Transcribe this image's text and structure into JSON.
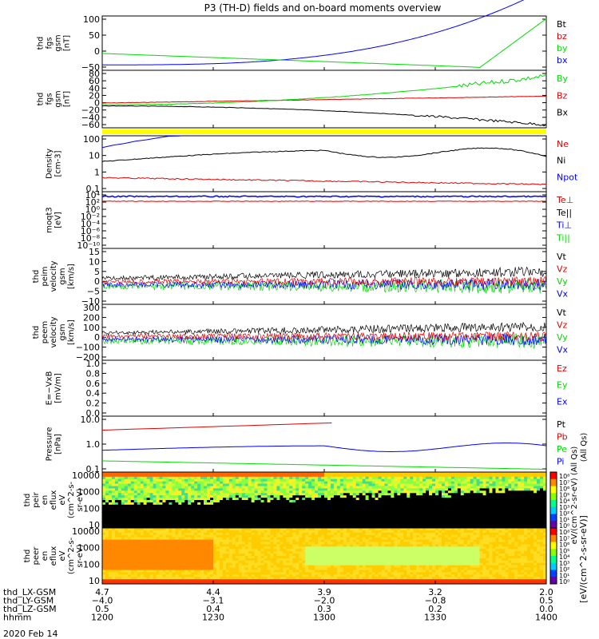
{
  "title": "P3 (TH-D) fields and on-board moments overview",
  "colors": {
    "black": "#000000",
    "red": "#e00000",
    "green": "#00dd00",
    "blue": "#0000ff",
    "yellow": "#ffff00"
  },
  "chart_data": [
    {
      "type": "line",
      "id": "fgs-gsm",
      "ylabel": [
        "thd",
        "fgs",
        "gsm",
        "[nT]"
      ],
      "yticks": [
        "100",
        "50",
        "0",
        "−50"
      ],
      "legend": [
        {
          "label": "Bt",
          "color": "black"
        },
        {
          "label": "bz",
          "color": "red"
        },
        {
          "label": "by",
          "color": "green"
        },
        {
          "label": "bx",
          "color": "blue"
        }
      ]
    },
    {
      "type": "line",
      "id": "fgs-gse",
      "ylabel": [
        "thd",
        "fgs",
        "gsm",
        "[nT]"
      ],
      "yticks": [
        "80",
        "60",
        "40",
        "20",
        "0",
        "−20",
        "−40",
        "−60"
      ],
      "legend": [
        {
          "label": "By",
          "color": "green"
        },
        {
          "label": "Bz",
          "color": "red"
        },
        {
          "label": "Bx",
          "color": "black"
        }
      ]
    },
    {
      "type": "bar",
      "id": "mode-bar",
      "color": "yellow"
    },
    {
      "type": "line",
      "id": "density",
      "log": true,
      "ylabel": [
        "Density",
        "[cm-3]"
      ],
      "yticks": [
        "100",
        "10",
        "1",
        "0.1"
      ],
      "legend": [
        {
          "label": "Ne",
          "color": "red"
        },
        {
          "label": "Ni",
          "color": "black"
        },
        {
          "label": "Npot",
          "color": "blue"
        }
      ]
    },
    {
      "type": "line",
      "id": "temperature",
      "log": true,
      "ylabel": [
        "moqt3",
        "[eV]"
      ],
      "yticks": [
        "10⁴",
        "10²",
        "10⁰",
        "10⁻²",
        "10⁻⁴",
        "10⁻⁶",
        "10⁻⁸",
        "10⁻¹⁰"
      ],
      "legend": [
        {
          "label": "Te⊥",
          "color": "red"
        },
        {
          "label": "Te||",
          "color": "black"
        },
        {
          "label": "Ti⊥",
          "color": "blue"
        },
        {
          "label": "Ti||",
          "color": "green"
        }
      ]
    },
    {
      "type": "line",
      "id": "peim-velocity",
      "ylabel": [
        "thd",
        "peim",
        "velocity",
        "gsm",
        "[km/s]"
      ],
      "yticks": [
        "15",
        "10",
        "5",
        "0",
        "−5",
        "−10"
      ],
      "legend": [
        {
          "label": "Vt",
          "color": "black"
        },
        {
          "label": "Vz",
          "color": "red"
        },
        {
          "label": "Vy",
          "color": "green"
        },
        {
          "label": "Vx",
          "color": "blue"
        }
      ]
    },
    {
      "type": "line",
      "id": "peem-velocity",
      "ylabel": [
        "thd",
        "peem",
        "velocity",
        "gsm",
        "[km/s]"
      ],
      "yticks": [
        "300",
        "200",
        "100",
        "0",
        "−100",
        "−200"
      ],
      "legend": [
        {
          "label": "Vt",
          "color": "black"
        },
        {
          "label": "Vz",
          "color": "red"
        },
        {
          "label": "Vy",
          "color": "green"
        },
        {
          "label": "Vx",
          "color": "blue"
        }
      ]
    },
    {
      "type": "line",
      "id": "efield",
      "ylabel": [
        "E=−VxB",
        "[mV/m]"
      ],
      "yticks": [
        "1.0",
        "0.8",
        "0.6",
        "0.4",
        "0.2",
        "0.0"
      ],
      "legend": [
        {
          "label": "Ez",
          "color": "red"
        },
        {
          "label": "Ey",
          "color": "green"
        },
        {
          "label": "Ex",
          "color": "blue"
        }
      ]
    },
    {
      "type": "line",
      "id": "pressure",
      "log": true,
      "ylabel": [
        "Pressure",
        "[nPa]"
      ],
      "yticks": [
        "10.0",
        "1.0",
        "0.1"
      ],
      "legend": [
        {
          "label": "Pt",
          "color": "black"
        },
        {
          "label": "Pb",
          "color": "red"
        },
        {
          "label": "Pe",
          "color": "green"
        },
        {
          "label": "Pi",
          "color": "blue"
        }
      ],
      "colorbar_label": "(All Qs)"
    },
    {
      "type": "heatmap",
      "id": "peir",
      "log": true,
      "ylabel": [
        "thd",
        "peir",
        "en",
        "eflux",
        "eV",
        "(cm^2-s-",
        "sr-eV)"
      ],
      "yticks": [
        "10000",
        "1000",
        "100",
        "10"
      ],
      "colorbar_ticks": [
        "10⁸",
        "10⁷",
        "10⁶",
        "10⁵",
        "10⁴",
        "10³",
        "10²",
        "10¹",
        "10⁰"
      ]
    },
    {
      "type": "heatmap",
      "id": "peer",
      "log": true,
      "ylabel": [
        "thd",
        "peer",
        "en",
        "eflux",
        "eV",
        "(cm^2-s-",
        "sr-eV)"
      ],
      "yticks": [
        "10000",
        "1000",
        "100",
        "10"
      ],
      "colorbar_ticks": [
        "10⁸",
        "10⁷",
        "10⁶",
        "10⁵",
        "10⁴",
        "10³",
        "10²",
        "10¹",
        "10⁰"
      ],
      "colorbar_label": "[eV/(cm^2-s-sr-eV)]"
    }
  ],
  "colorbar_overlay": "eV/(cm^2-sr-eV) (All Qs)",
  "xaxis": {
    "rows": [
      {
        "label": "thd_LX-GSM",
        "values": [
          "4.7",
          "4.4",
          "3.9",
          "3.2",
          "2.0"
        ]
      },
      {
        "label": "thd_LY-GSM",
        "values": [
          "−4.0",
          "−3.1",
          "−2.0",
          "−0.8",
          "0.5"
        ]
      },
      {
        "label": "thd_LZ-GSM",
        "values": [
          "0.5",
          "0.4",
          "0.3",
          "0.2",
          "0.0"
        ]
      },
      {
        "label": "hhmm",
        "values": [
          "1200",
          "1230",
          "1300",
          "1330",
          "1400"
        ]
      }
    ],
    "date": "2020 Feb 14"
  }
}
